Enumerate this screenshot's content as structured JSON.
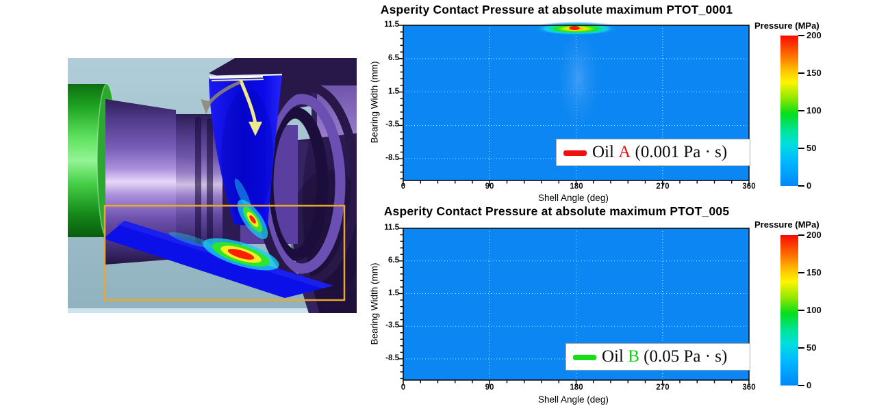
{
  "render_3d": {
    "description_name": "crankshaft-journal-bearing-3d-render",
    "highlight_box_color": "#E9A72C",
    "rotation_arrow_color": "#EFE98E",
    "counter_rotation_arrow_color": "#8F8774",
    "bearing_shell_color": "#0B0BE8"
  },
  "chart_data": [
    {
      "type": "heatmap",
      "title": "Asperity Contact Pressure at absolute maximum PTOT_0001",
      "xlabel": "Shell Angle (deg)",
      "ylabel": "Bearing Width (mm)",
      "xlim": [
        0,
        360
      ],
      "ylim": [
        -11.75,
        11.5
      ],
      "x_ticks": [
        0,
        90,
        180,
        270,
        360
      ],
      "y_ticks": [
        11.5,
        6.5,
        1.5,
        -3.5,
        -8.5
      ],
      "grid": true,
      "background_pressure_mpa": 0,
      "hotspots": [
        {
          "shell_angle_deg": 180,
          "bearing_width_mm": 11,
          "peak_pressure_mpa": 200,
          "spread_deg": 45,
          "spread_mm": 2
        }
      ],
      "legend": {
        "position": "lower right",
        "prefix": "Oil ",
        "oil": "A",
        "suffix": " (0.001 Pa · s)",
        "swatch_color": "#EE1111",
        "oil_color": "#EE1111"
      },
      "colorbar": {
        "title": "Pressure (MPa)",
        "ticks": [
          200,
          150,
          100,
          50,
          0
        ],
        "min": 0,
        "max": 200
      }
    },
    {
      "type": "heatmap",
      "title": "Asperity Contact Pressure at absolute maximum PTOT_005",
      "xlabel": "Shell Angle (deg)",
      "ylabel": "Bearing Width (mm)",
      "xlim": [
        0,
        360
      ],
      "ylim": [
        -11.75,
        11.5
      ],
      "x_ticks": [
        0,
        90,
        180,
        270,
        360
      ],
      "y_ticks": [
        11.5,
        6.5,
        1.5,
        -3.5,
        -8.5
      ],
      "grid": true,
      "background_pressure_mpa": 0,
      "hotspots": [],
      "legend": {
        "position": "lower right",
        "prefix": "Oil ",
        "oil": "B",
        "suffix": " (0.05 Pa · s)",
        "swatch_color": "#18DD18",
        "oil_color": "#15CC15"
      },
      "colorbar": {
        "title": "Pressure (MPa)",
        "ticks": [
          200,
          150,
          100,
          50,
          0
        ],
        "min": 0,
        "max": 200
      }
    }
  ]
}
